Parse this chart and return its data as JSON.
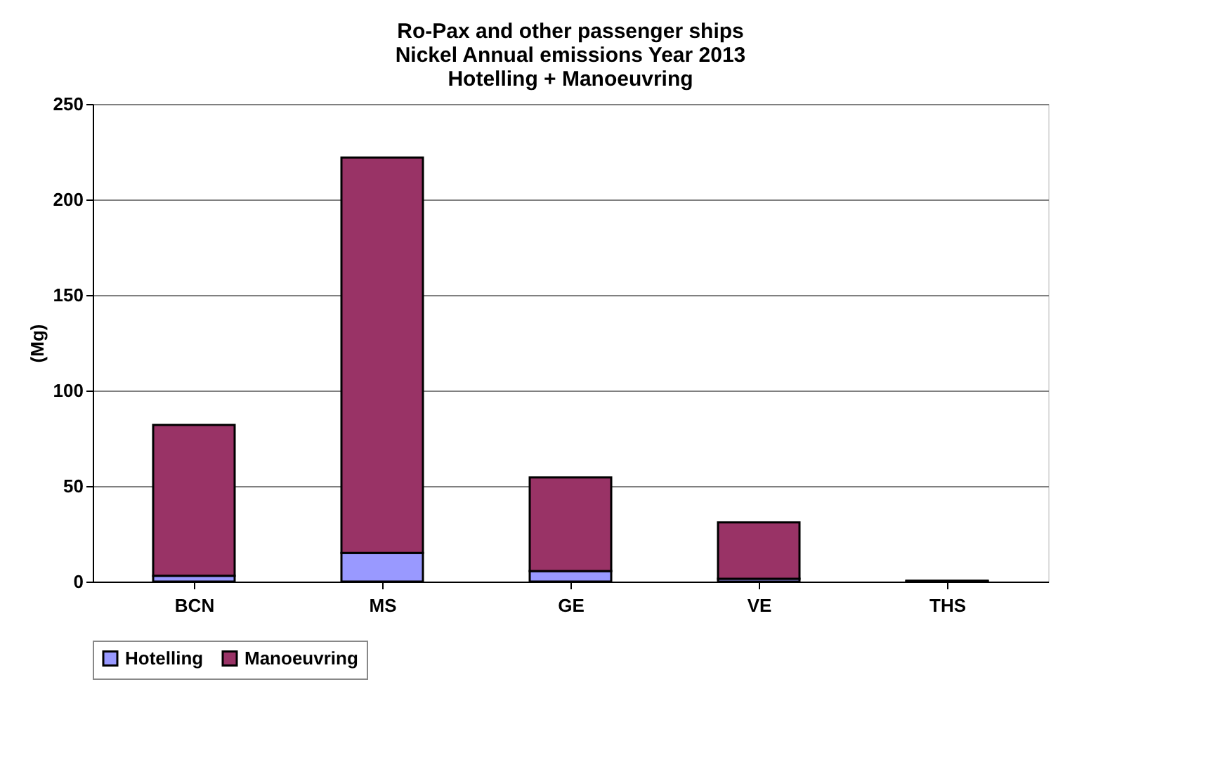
{
  "chart_data": {
    "type": "bar",
    "title": [
      "Ro-Pax and other passenger ships",
      "Nickel Annual emissions Year 2013",
      "Hotelling + Manoeuvring"
    ],
    "ylabel": "(Mg)",
    "categories": [
      "BCN",
      "MS",
      "GE",
      "VE",
      "THS"
    ],
    "stacked": true,
    "series": [
      {
        "name": "Hotelling",
        "color": "#9999ff",
        "values": [
          3,
          15,
          5.5,
          1.5,
          0.1
        ]
      },
      {
        "name": "Manoeuvring",
        "color": "#993366",
        "values": [
          79,
          207,
          49,
          29.5,
          0.4
        ]
      }
    ],
    "ylim": [
      0,
      250
    ],
    "yticks": [
      0,
      50,
      100,
      150,
      200,
      250
    ],
    "grid": "y",
    "legend": "bottom"
  }
}
